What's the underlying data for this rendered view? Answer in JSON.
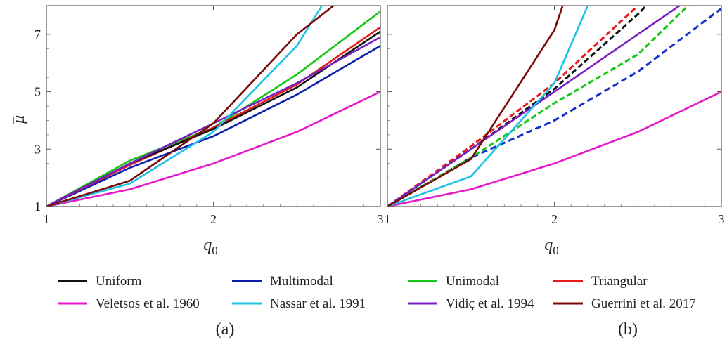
{
  "chart_data": [
    {
      "type": "line",
      "panel_label": "(a)",
      "xlabel": "q",
      "xlabel_sub": "0",
      "ylabel": "μ",
      "xlim": [
        1,
        3
      ],
      "ylim": [
        1,
        8
      ],
      "xticks": [
        1,
        2,
        3
      ],
      "xtick_labels": [
        "1",
        "2",
        "3"
      ],
      "yticks": [
        1,
        3,
        5,
        7
      ],
      "ytick_labels": [
        "1",
        "3",
        "5",
        "7"
      ],
      "grid": false,
      "series": [
        {
          "name": "Veletsos et al. 1960",
          "color": "#e619c8",
          "dashed": false,
          "x": [
            1,
            1.5,
            2,
            2.5,
            3
          ],
          "y": [
            1,
            1.6,
            2.5,
            3.6,
            5.0
          ]
        },
        {
          "name": "Multimodal",
          "color": "#0c1eb0",
          "dashed": false,
          "x": [
            1,
            1.5,
            2,
            2.5,
            3
          ],
          "y": [
            1,
            2.35,
            3.45,
            4.9,
            6.6
          ]
        },
        {
          "name": "Unimodal",
          "color": "#16c616",
          "dashed": false,
          "x": [
            1,
            1.5,
            2,
            2.5,
            3
          ],
          "y": [
            1,
            2.6,
            3.75,
            5.6,
            7.8
          ]
        },
        {
          "name": "Triangular",
          "color": "#e61a1a",
          "dashed": false,
          "x": [
            1,
            1.5,
            2,
            2.5,
            3
          ],
          "y": [
            1,
            2.45,
            3.75,
            5.25,
            7.25
          ]
        },
        {
          "name": "Uniform",
          "color": "#111111",
          "dashed": false,
          "x": [
            1,
            1.5,
            2,
            2.5,
            3
          ],
          "y": [
            1,
            2.5,
            3.7,
            5.15,
            7.1
          ]
        },
        {
          "name": "Vidiç et al. 1994",
          "color": "#7a1fc4",
          "dashed": false,
          "x": [
            1,
            1.5,
            2,
            2.5,
            3
          ],
          "y": [
            1,
            2.5,
            3.9,
            5.3,
            6.9
          ]
        },
        {
          "name": "Nassar et al. 1991",
          "color": "#1ec2e6",
          "dashed": false,
          "x": [
            1,
            1.5,
            2,
            2.5,
            2.65
          ],
          "y": [
            1,
            1.8,
            3.6,
            6.6,
            8.0
          ]
        },
        {
          "name": "Guerrini et al. 2017",
          "color": "#7a0a0a",
          "dashed": false,
          "x": [
            1,
            1.5,
            2,
            2.5,
            2.72
          ],
          "y": [
            1,
            1.9,
            3.9,
            7.0,
            8.0
          ]
        }
      ]
    },
    {
      "type": "line",
      "panel_label": "(b)",
      "xlabel": "q",
      "xlabel_sub": "0",
      "ylabel": "",
      "xlim": [
        1,
        3
      ],
      "ylim": [
        1,
        8
      ],
      "xticks": [
        1,
        2,
        3
      ],
      "xtick_labels": [
        "1",
        "2",
        "3"
      ],
      "yticks": [],
      "ytick_labels": [],
      "grid": false,
      "series": [
        {
          "name": "Veletsos et al. 1960",
          "color": "#e619c8",
          "dashed": false,
          "x": [
            1,
            1.5,
            2,
            2.5,
            3
          ],
          "y": [
            1,
            1.6,
            2.5,
            3.6,
            5.0
          ]
        },
        {
          "name": "Multimodal",
          "color": "#1530c8",
          "dashed": true,
          "x": [
            1,
            1.5,
            2,
            2.5,
            3
          ],
          "y": [
            1,
            2.7,
            4.0,
            5.7,
            7.9
          ]
        },
        {
          "name": "Unimodal",
          "color": "#16c616",
          "dashed": true,
          "x": [
            1,
            1.5,
            2,
            2.5,
            2.8
          ],
          "y": [
            1,
            2.7,
            4.6,
            6.3,
            8.0
          ]
        },
        {
          "name": "Uniform",
          "color": "#111111",
          "dashed": true,
          "x": [
            1,
            1.5,
            2,
            2.5,
            2.55
          ],
          "y": [
            1,
            3.0,
            5.1,
            7.7,
            8.0
          ]
        },
        {
          "name": "Triangular",
          "color": "#e61a1a",
          "dashed": true,
          "x": [
            1,
            1.5,
            2,
            2.5
          ],
          "y": [
            1,
            3.1,
            5.3,
            8.0
          ]
        },
        {
          "name": "Vidiç et al. 1994",
          "color": "#7a1fc4",
          "dashed": false,
          "x": [
            1,
            1.5,
            2,
            2.5,
            2.75
          ],
          "y": [
            1,
            3.0,
            5.0,
            7.0,
            8.0
          ]
        },
        {
          "name": "Nassar et al. 1991",
          "color": "#1ec2e6",
          "dashed": false,
          "x": [
            1,
            1.5,
            2,
            2.2
          ],
          "y": [
            1,
            2.05,
            5.3,
            8.0
          ]
        },
        {
          "name": "Guerrini et al. 2017",
          "color": "#7a0a0a",
          "dashed": false,
          "x": [
            1,
            1.5,
            2,
            2.05
          ],
          "y": [
            1,
            2.65,
            7.15,
            8.0
          ]
        }
      ]
    }
  ],
  "legend": [
    {
      "name": "Uniform",
      "color": "#111111"
    },
    {
      "name": "Multimodal",
      "color": "#0c1eb0"
    },
    {
      "name": "Unimodal",
      "color": "#16c616"
    },
    {
      "name": "Triangular",
      "color": "#e61a1a"
    },
    {
      "name": "Veletsos et al. 1960",
      "color": "#e619c8"
    },
    {
      "name": "Nassar et al. 1991",
      "color": "#1ec2e6"
    },
    {
      "name": "Vidiç et al. 1994",
      "color": "#7a1fc4"
    },
    {
      "name": "Guerrini et al. 2017",
      "color": "#7a0a0a"
    }
  ]
}
